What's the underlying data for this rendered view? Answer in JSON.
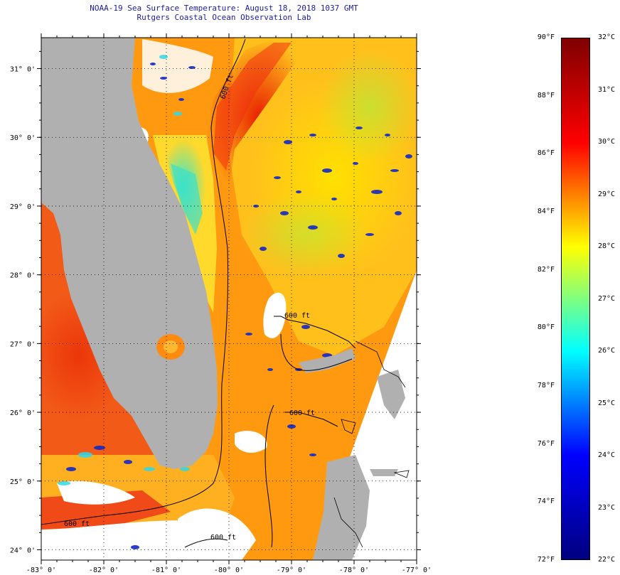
{
  "header": {
    "title_line1": "NOAA-19 Sea Surface Temperature:  August 18, 2018 1037 GMT",
    "title_line2": "Rutgers Coastal Ocean Observation Lab"
  },
  "map": {
    "lon_ticks": [
      "-83° 0'",
      "-82° 0'",
      "-81° 0'",
      "-80° 0'",
      "-79° 0'",
      "-78° 0'",
      "-77° 0'"
    ],
    "lat_ticks": [
      "31° 0'",
      "30° 0'",
      "29° 0'",
      "28° 0'",
      "27° 0'",
      "26° 0'",
      "25° 0'",
      "24° 0'"
    ],
    "lon_range": [
      -83,
      -77
    ],
    "lat_range": [
      23.85,
      31.45
    ],
    "gridlines": "dotted",
    "contour_labels": [
      "600 ft",
      "600 ft",
      "600 ft",
      "600 ft",
      "600 ft"
    ],
    "land_color": "#b0b0b0",
    "no_data_color": "#ffffff"
  },
  "colorbar": {
    "fahrenheit_labels": [
      "90°F",
      "88°F",
      "86°F",
      "84°F",
      "82°F",
      "80°F",
      "78°F",
      "76°F",
      "74°F",
      "72°F"
    ],
    "celsius_labels": [
      "32°C",
      "31°C",
      "30°C",
      "29°C",
      "28°C",
      "27°C",
      "26°C",
      "25°C",
      "24°C",
      "23°C",
      "22°C"
    ],
    "range_f": [
      72,
      90
    ],
    "range_c": [
      22,
      32
    ],
    "colors": [
      "#00007f",
      "#0000ff",
      "#00ffff",
      "#ffff00",
      "#ff0000",
      "#7f0000"
    ]
  }
}
